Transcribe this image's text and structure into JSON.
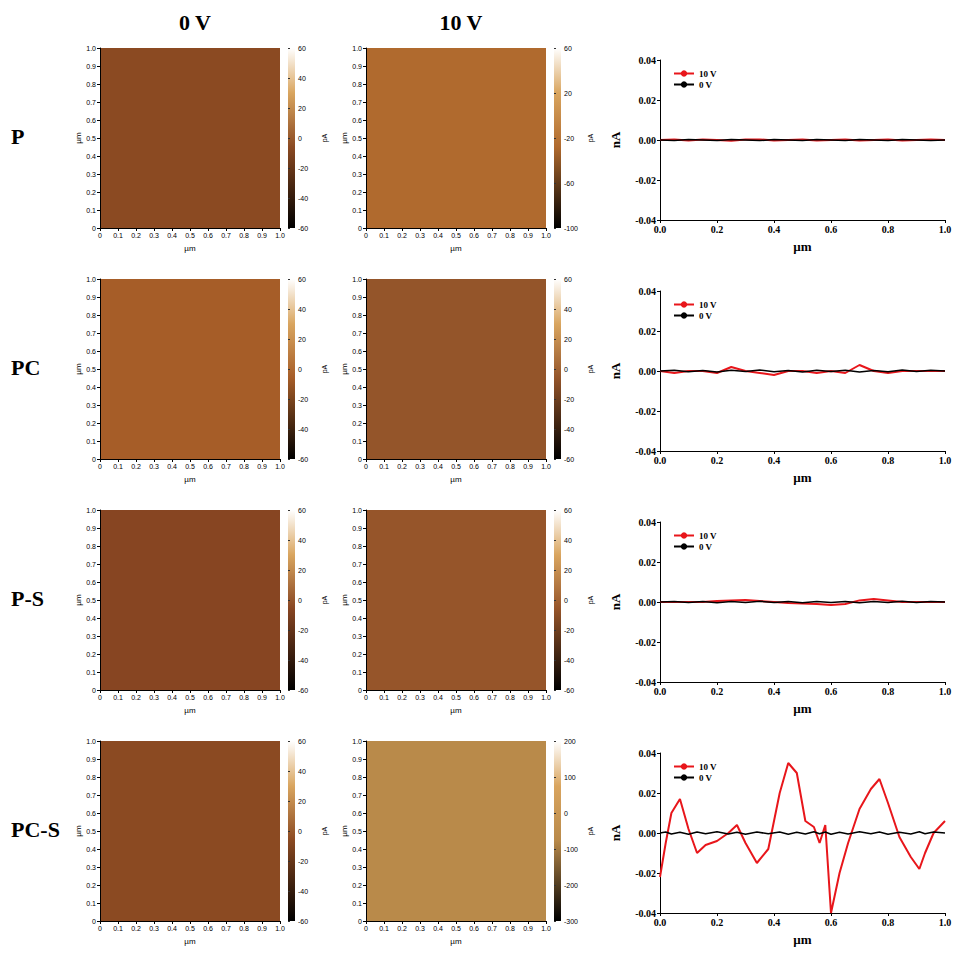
{
  "column_titles": [
    "0 V",
    "10 V"
  ],
  "row_labels": [
    "P",
    "PC",
    "P-S",
    "PC-S"
  ],
  "chart_data": [
    {
      "type": "image",
      "color": "#8b4a22",
      "xlabel": "µm",
      "ylabel": "µm",
      "xlim": [
        0,
        1
      ],
      "xticks": [
        0,
        0.1,
        0.2,
        0.3,
        0.4,
        0.5,
        0.6,
        0.7,
        0.8,
        0.9,
        {
          "value": 1,
          "label": "1.0"
        }
      ],
      "ylim": [
        0,
        1
      ],
      "yticks": [
        0,
        0.1,
        0.2,
        0.3,
        0.4,
        0.5,
        0.6,
        0.7,
        0.8,
        0.9,
        {
          "value": 1,
          "label": "1.0"
        }
      ],
      "color_bar": {
        "label": "pA",
        "range": [
          -60,
          60
        ],
        "ticks": [
          -60,
          -40,
          -20,
          0,
          20,
          40,
          60
        ]
      }
    },
    {
      "type": "image",
      "color": "#b06a2e",
      "xlabel": "µm",
      "ylabel": "µm",
      "xlim": [
        0,
        1
      ],
      "xticks": [
        0,
        0.1,
        0.2,
        0.3,
        0.4,
        0.5,
        0.6,
        0.7,
        0.8,
        0.9,
        {
          "value": 1,
          "label": "1.0"
        }
      ],
      "ylim": [
        0,
        1
      ],
      "yticks": [
        0,
        0.1,
        0.2,
        0.3,
        0.4,
        0.5,
        0.6,
        0.7,
        0.8,
        0.9,
        {
          "value": 1,
          "label": "1.0"
        }
      ],
      "color_bar": {
        "label": "pA",
        "range": [
          -100,
          60
        ],
        "ticks": [
          -100,
          -60,
          -20,
          20,
          60
        ]
      }
    },
    {
      "type": "line",
      "xlabel": "µm",
      "ylabel": "nA",
      "legend": "upper left",
      "xlim": [
        0,
        1
      ],
      "xticks": [
        {
          "value": 0,
          "label": "0.0"
        },
        0.2,
        0.4,
        0.6,
        0.8,
        {
          "value": 1,
          "label": "1.0"
        }
      ],
      "ylim": [
        -0.04,
        0.04
      ],
      "yticks": [
        -0.04,
        -0.02,
        {
          "value": 0,
          "label": "0.00"
        },
        0.02,
        0.04
      ],
      "x": [
        0,
        0.05,
        0.1,
        0.15,
        0.2,
        0.25,
        0.3,
        0.35,
        0.4,
        0.45,
        0.5,
        0.55,
        0.6,
        0.65,
        0.7,
        0.75,
        0.8,
        0.85,
        0.9,
        0.95,
        1
      ],
      "series": [
        {
          "name": "10 V",
          "color": "#e8161b",
          "values": [
            0,
            0.0003,
            -0.0003,
            0.0002,
            0,
            -0.0004,
            0.0002,
            0.0003,
            -0.0002,
            0,
            0.0002,
            -0.0003,
            0,
            0.0003,
            -0.0002,
            0,
            0.0002,
            -0.0003,
            0,
            0.0002,
            0
          ]
        },
        {
          "name": "0 V",
          "color": "#000000",
          "values": [
            0,
            -0.0002,
            0.0002,
            0,
            -0.0002,
            0.0002,
            0,
            -0.0003,
            0.0002,
            0,
            -0.0002,
            0.0002,
            0,
            -0.0002,
            0.0002,
            0,
            -0.0002,
            0.0002,
            0,
            -0.0002,
            0
          ]
        }
      ]
    },
    {
      "type": "image",
      "color": "#a65d28",
      "xlabel": "µm",
      "ylabel": "µm",
      "xlim": [
        0,
        1
      ],
      "xticks": [
        0,
        0.1,
        0.2,
        0.3,
        0.4,
        0.5,
        0.6,
        0.7,
        0.8,
        0.9,
        {
          "value": 1,
          "label": "1.0"
        }
      ],
      "ylim": [
        0,
        1
      ],
      "yticks": [
        0,
        0.1,
        0.2,
        0.3,
        0.4,
        0.5,
        0.6,
        0.7,
        0.8,
        0.9,
        {
          "value": 1,
          "label": "1.0"
        }
      ],
      "color_bar": {
        "label": "pA",
        "range": [
          -60,
          60
        ],
        "ticks": [
          -60,
          -40,
          -20,
          0,
          20,
          40,
          60
        ]
      }
    },
    {
      "type": "image",
      "color": "#94552a",
      "xlabel": "µm",
      "ylabel": "µm",
      "xlim": [
        0,
        1
      ],
      "xticks": [
        0,
        0.1,
        0.2,
        0.3,
        0.4,
        0.5,
        0.6,
        0.7,
        0.8,
        0.9,
        {
          "value": 1,
          "label": "1.0"
        }
      ],
      "ylim": [
        0,
        1
      ],
      "yticks": [
        0,
        0.1,
        0.2,
        0.3,
        0.4,
        0.5,
        0.6,
        0.7,
        0.8,
        0.9,
        {
          "value": 1,
          "label": "1.0"
        }
      ],
      "color_bar": {
        "label": "pA",
        "range": [
          -60,
          60
        ],
        "ticks": [
          -60,
          -40,
          -20,
          0,
          20,
          40,
          60
        ]
      }
    },
    {
      "type": "line",
      "xlabel": "µm",
      "ylabel": "nA",
      "legend": "upper left",
      "xlim": [
        0,
        1
      ],
      "xticks": [
        {
          "value": 0,
          "label": "0.0"
        },
        0.2,
        0.4,
        0.6,
        0.8,
        {
          "value": 1,
          "label": "1.0"
        }
      ],
      "ylim": [
        -0.04,
        0.04
      ],
      "yticks": [
        -0.04,
        -0.02,
        {
          "value": 0,
          "label": "0.00"
        },
        0.02,
        0.04
      ],
      "x": [
        0,
        0.05,
        0.1,
        0.15,
        0.2,
        0.25,
        0.3,
        0.35,
        0.4,
        0.45,
        0.5,
        0.55,
        0.6,
        0.65,
        0.7,
        0.75,
        0.8,
        0.85,
        0.9,
        0.95,
        1
      ],
      "series": [
        {
          "name": "10 V",
          "color": "#e8161b",
          "values": [
            0,
            -0.001,
            0,
            0,
            -0.001,
            0.002,
            0,
            -0.001,
            -0.002,
            0,
            0,
            -0.001,
            0,
            -0.001,
            0.003,
            0,
            -0.001,
            0,
            0,
            0,
            0
          ]
        },
        {
          "name": "0 V",
          "color": "#000000",
          "values": [
            0,
            0.0004,
            -0.0004,
            0.0003,
            -0.0005,
            0.0004,
            -0.0003,
            0.0005,
            -0.0004,
            0.0003,
            -0.0005,
            0.0004,
            -0.0003,
            0.0004,
            -0.0005,
            0.0003,
            -0.0004,
            0.0005,
            -0.0003,
            0.0004,
            0
          ]
        }
      ]
    },
    {
      "type": "image",
      "color": "#874522",
      "xlabel": "µm",
      "ylabel": "µm",
      "xlim": [
        0,
        1
      ],
      "xticks": [
        0,
        0.1,
        0.2,
        0.3,
        0.4,
        0.5,
        0.6,
        0.7,
        0.8,
        0.9,
        {
          "value": 1,
          "label": "1.0"
        }
      ],
      "ylim": [
        0,
        1
      ],
      "yticks": [
        0,
        0.1,
        0.2,
        0.3,
        0.4,
        0.5,
        0.6,
        0.7,
        0.8,
        0.9,
        {
          "value": 1,
          "label": "1.0"
        }
      ],
      "color_bar": {
        "label": "pA",
        "range": [
          -60,
          60
        ],
        "ticks": [
          -60,
          -40,
          -20,
          0,
          20,
          40,
          60
        ]
      }
    },
    {
      "type": "image",
      "color": "#96552a",
      "xlabel": "µm",
      "ylabel": "µm",
      "xlim": [
        0,
        1
      ],
      "xticks": [
        0,
        0.1,
        0.2,
        0.3,
        0.4,
        0.5,
        0.6,
        0.7,
        0.8,
        0.9,
        {
          "value": 1,
          "label": "1.0"
        }
      ],
      "ylim": [
        0,
        1
      ],
      "yticks": [
        0,
        0.1,
        0.2,
        0.3,
        0.4,
        0.5,
        0.6,
        0.7,
        0.8,
        0.9,
        {
          "value": 1,
          "label": "1.0"
        }
      ],
      "color_bar": {
        "label": "pA",
        "range": [
          -60,
          60
        ],
        "ticks": [
          -60,
          -40,
          -20,
          0,
          20,
          40,
          60
        ]
      }
    },
    {
      "type": "line",
      "xlabel": "µm",
      "ylabel": "nA",
      "legend": "upper left",
      "xlim": [
        0,
        1
      ],
      "xticks": [
        {
          "value": 0,
          "label": "0.0"
        },
        0.2,
        0.4,
        0.6,
        0.8,
        {
          "value": 1,
          "label": "1.0"
        }
      ],
      "ylim": [
        -0.04,
        0.04
      ],
      "yticks": [
        -0.04,
        -0.02,
        {
          "value": 0,
          "label": "0.00"
        },
        0.02,
        0.04
      ],
      "x": [
        0,
        0.05,
        0.1,
        0.15,
        0.2,
        0.25,
        0.3,
        0.35,
        0.4,
        0.45,
        0.5,
        0.55,
        0.6,
        0.65,
        0.7,
        0.75,
        0.8,
        0.85,
        0.9,
        0.95,
        1
      ],
      "series": [
        {
          "name": "10 V",
          "color": "#e8161b",
          "values": [
            0,
            0,
            0,
            0,
            0.0005,
            0.0008,
            0.001,
            0.0005,
            0,
            -0.0005,
            -0.0008,
            -0.001,
            -0.0015,
            -0.001,
            0.0008,
            0.0015,
            0.0008,
            0,
            0,
            0,
            0
          ]
        },
        {
          "name": "0 V",
          "color": "#000000",
          "values": [
            0,
            0.0003,
            -0.0003,
            0.0002,
            -0.0004,
            0.0003,
            -0.0002,
            0.0004,
            -0.0003,
            0.0002,
            -0.0004,
            0.0003,
            -0.0002,
            0.0003,
            -0.0004,
            0.0002,
            -0.0003,
            0.0004,
            -0.0002,
            0.0003,
            0
          ]
        }
      ]
    },
    {
      "type": "image",
      "color": "#8b4a22",
      "xlabel": "µm",
      "ylabel": "µm",
      "xlim": [
        0,
        1
      ],
      "xticks": [
        0,
        0.1,
        0.2,
        0.3,
        0.4,
        0.5,
        0.6,
        0.7,
        0.8,
        0.9,
        {
          "value": 1,
          "label": "1.0"
        }
      ],
      "ylim": [
        0,
        1
      ],
      "yticks": [
        0,
        0.1,
        0.2,
        0.3,
        0.4,
        0.5,
        0.6,
        0.7,
        0.8,
        0.9,
        {
          "value": 1,
          "label": "1.0"
        }
      ],
      "color_bar": {
        "label": "pA",
        "range": [
          -60,
          60
        ],
        "ticks": [
          -60,
          -40,
          -20,
          0,
          20,
          40,
          60
        ]
      }
    },
    {
      "type": "image",
      "color": "#b98a4a",
      "xlabel": "µm",
      "ylabel": "µm",
      "xlim": [
        0,
        1
      ],
      "xticks": [
        0,
        0.1,
        0.2,
        0.3,
        0.4,
        0.5,
        0.6,
        0.7,
        0.8,
        0.9,
        {
          "value": 1,
          "label": "1.0"
        }
      ],
      "ylim": [
        0,
        1
      ],
      "yticks": [
        0,
        0.1,
        0.2,
        0.3,
        0.4,
        0.5,
        0.6,
        0.7,
        0.8,
        0.9,
        {
          "value": 1,
          "label": "1.0"
        }
      ],
      "color_bar": {
        "label": "pA",
        "range": [
          -300,
          200
        ],
        "ticks": [
          -300,
          -200,
          -100,
          0,
          100,
          200
        ]
      }
    },
    {
      "type": "line",
      "xlabel": "µm",
      "ylabel": "nA",
      "legend": "upper left",
      "xlim": [
        0,
        1
      ],
      "xticks": [
        {
          "value": 0,
          "label": "0.0"
        },
        0.2,
        0.4,
        0.6,
        0.8,
        {
          "value": 1,
          "label": "1.0"
        }
      ],
      "ylim": [
        -0.04,
        0.04
      ],
      "yticks": [
        -0.04,
        -0.02,
        {
          "value": 0,
          "label": "0.00"
        },
        0.02,
        0.04
      ],
      "x": [
        0,
        0.02,
        0.04,
        0.07,
        0.1,
        0.13,
        0.16,
        0.2,
        0.24,
        0.27,
        0.3,
        0.34,
        0.38,
        0.42,
        0.45,
        0.48,
        0.51,
        0.54,
        0.56,
        0.58,
        0.6,
        0.63,
        0.66,
        0.7,
        0.74,
        0.77,
        0.8,
        0.84,
        0.88,
        0.91,
        0.93,
        0.96,
        1
      ],
      "series": [
        {
          "name": "10 V",
          "color": "#e8161b",
          "values": [
            -0.022,
            -0.005,
            0.01,
            0.017,
            0.002,
            -0.01,
            -0.006,
            -0.004,
            0,
            0.004,
            -0.005,
            -0.015,
            -0.008,
            0.02,
            0.035,
            0.03,
            0.006,
            0.003,
            -0.005,
            0.004,
            -0.04,
            -0.02,
            -0.005,
            0.012,
            0.022,
            0.027,
            0.015,
            -0.002,
            -0.012,
            -0.018,
            -0.01,
            0,
            0.006
          ]
        },
        {
          "name": "0 V",
          "color": "#000000",
          "values": [
            0,
            0.0005,
            -0.0005,
            0.0004,
            -0.0006,
            0.0005,
            -0.0004,
            0.0006,
            -0.0005,
            0.0004,
            -0.0006,
            0.0005,
            -0.0004,
            0.0005,
            -0.0006,
            0.0004,
            -0.0005,
            0.0006,
            -0.0004,
            0.0005,
            -0.0006,
            0.0004,
            -0.0005,
            0.0006,
            -0.0004,
            0.0005,
            -0.0006,
            0.0004,
            -0.0005,
            0.0006,
            -0.0004,
            0.0005,
            0
          ]
        }
      ]
    }
  ]
}
